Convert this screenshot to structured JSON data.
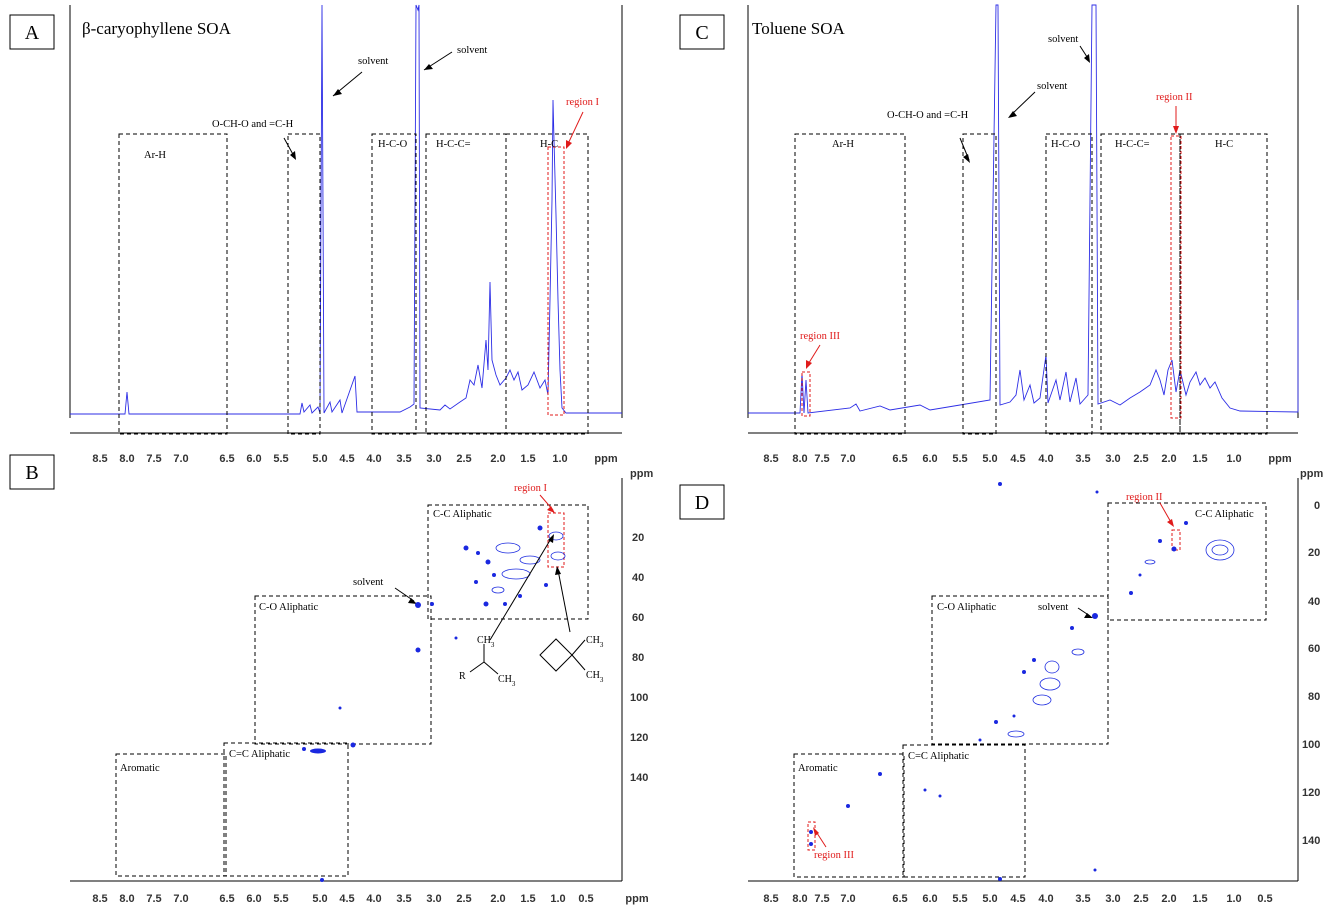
{
  "panels": {
    "A": {
      "letter": "A",
      "title": "β-caryophyllene  SOA",
      "regions": [
        "Ar-H",
        "O-CH-O and =C-H",
        "H-C-O",
        "H-C-C=",
        "H-C"
      ],
      "solvent1": "solvent",
      "solvent2": "solvent",
      "region_label": "region I",
      "x_ticks": [
        "8.5",
        "8.0",
        "7.5",
        "7.0",
        "6.5",
        "6.0",
        "5.5",
        "5.0",
        "4.5",
        "4.0",
        "3.5",
        "3.0",
        "2.5",
        "2.0",
        "1.5",
        "1.0"
      ],
      "x_unit": "ppm"
    },
    "B": {
      "letter": "B",
      "regions": [
        "C-C Aliphatic",
        "C-O Aliphatic",
        "C=C Aliphatic",
        "Aromatic"
      ],
      "solvent": "solvent",
      "region_label": "region I",
      "x_ticks": [
        "8.5",
        "8.0",
        "7.5",
        "7.0",
        "6.5",
        "6.0",
        "5.5",
        "5.0",
        "4.5",
        "4.0",
        "3.5",
        "3.0",
        "2.5",
        "2.0",
        "1.5",
        "1.0",
        "0.5"
      ],
      "y_ticks": [
        "20",
        "40",
        "60",
        "80",
        "100",
        "120",
        "140"
      ],
      "x_unit": "ppm",
      "y_unit": "ppm",
      "struct1": {
        "r": "R",
        "ch3a": "CH",
        "ch3a_sub": "3",
        "ch3b": "CH",
        "ch3b_sub": "3"
      },
      "struct2": {
        "ch3a": "CH",
        "ch3a_sub": "3",
        "ch3b": "CH",
        "ch3b_sub": "3"
      }
    },
    "C": {
      "letter": "C",
      "title": "Toluene SOA",
      "regions": [
        "Ar-H",
        "O-CH-O and =C-H",
        "H-C-O",
        "H-C-C=",
        "H-C"
      ],
      "solvent1": "solvent",
      "solvent2": "solvent",
      "region2_label": "region II",
      "region3_label": "region III",
      "x_ticks": [
        "8.5",
        "8.0",
        "7.5",
        "7.0",
        "6.5",
        "6.0",
        "5.5",
        "5.0",
        "4.5",
        "4.0",
        "3.5",
        "3.0",
        "2.5",
        "2.0",
        "1.5",
        "1.0"
      ],
      "x_unit": "ppm"
    },
    "D": {
      "letter": "D",
      "regions": [
        "C-C Aliphatic",
        "C-O Aliphatic",
        "C=C Aliphatic",
        "Aromatic"
      ],
      "solvent": "solvent",
      "region2_label": "region II",
      "region3_label": "region III",
      "x_ticks": [
        "8.5",
        "8.0",
        "7.5",
        "7.0",
        "6.5",
        "6.0",
        "5.5",
        "5.0",
        "4.5",
        "4.0",
        "3.5",
        "3.0",
        "2.5",
        "2.0",
        "1.5",
        "1.0",
        "0.5"
      ],
      "y_ticks": [
        "0",
        "20",
        "40",
        "60",
        "80",
        "100",
        "120",
        "140"
      ],
      "x_unit": "ppm",
      "y_unit": "ppm"
    }
  },
  "colors": {
    "spectrum": "#2d2ee6",
    "annotation_red": "#e01b1b",
    "box": "#000000"
  }
}
